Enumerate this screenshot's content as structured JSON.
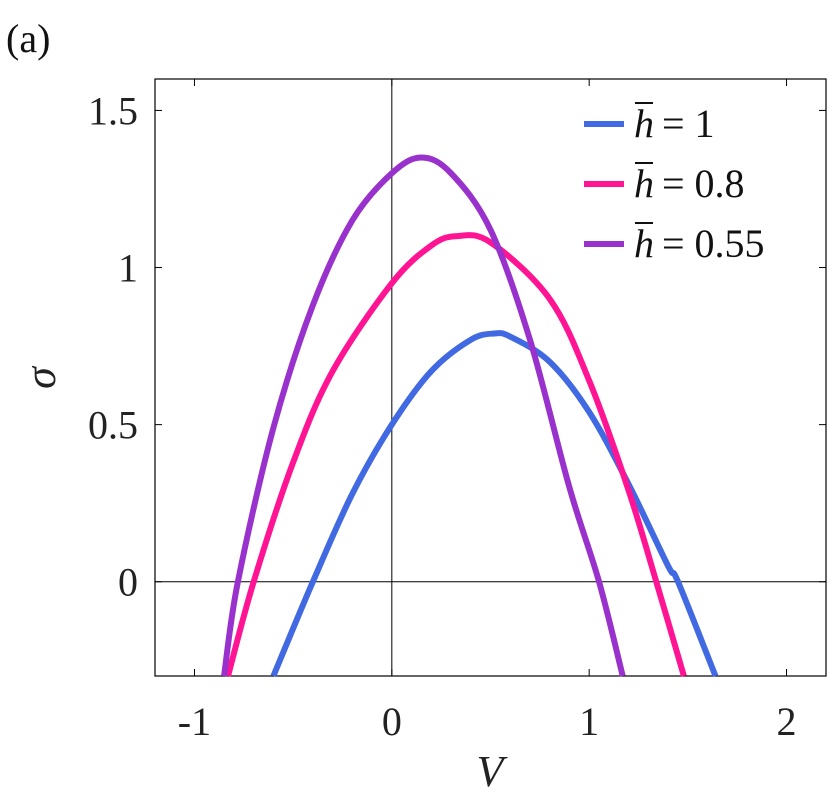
{
  "panel_label": "(a)",
  "chart_data": {
    "type": "line",
    "xlabel": "V",
    "ylabel": "σ",
    "xlim": [
      -1.2,
      2.2
    ],
    "ylim": [
      -0.3,
      1.6
    ],
    "xticks": [
      -1,
      0,
      1,
      2
    ],
    "xtick_labels": [
      "-1",
      "0",
      "1",
      "2"
    ],
    "yticks": [
      0,
      0.5,
      1,
      1.5
    ],
    "ytick_labels": [
      "0",
      "0.5",
      "1",
      "1.5"
    ],
    "reference_lines": {
      "x": 0,
      "y": 0
    },
    "legend_position": "top-right",
    "series": [
      {
        "name": "h̄ = 1",
        "legend_var": "h",
        "legend_eq": "= 1",
        "color": "#4169e1",
        "x": [
          -0.6,
          -0.4,
          -0.2,
          0.0,
          0.2,
          0.4,
          0.52,
          0.6,
          0.8,
          1.0,
          1.2,
          1.4,
          1.45,
          1.64
        ],
        "y": [
          -0.3,
          0.0,
          0.28,
          0.5,
          0.67,
          0.77,
          0.79,
          0.78,
          0.7,
          0.54,
          0.31,
          0.05,
          0.0,
          -0.3
        ]
      },
      {
        "name": "h̄ = 0.8",
        "legend_var": "h",
        "legend_eq": "= 0.8",
        "color": "#ff1493",
        "x": [
          -0.83,
          -0.7,
          -0.5,
          -0.3,
          0.0,
          0.2,
          0.33,
          0.5,
          0.8,
          1.0,
          1.2,
          1.34,
          1.48
        ],
        "y": [
          -0.3,
          0.0,
          0.38,
          0.67,
          0.95,
          1.07,
          1.1,
          1.08,
          0.9,
          0.64,
          0.29,
          0.0,
          -0.3
        ]
      },
      {
        "name": "h̄ = 0.55",
        "legend_var": "h",
        "legend_eq": "= 0.55",
        "color": "#9932cc",
        "x": [
          -0.85,
          -0.78,
          -0.6,
          -0.4,
          -0.2,
          0.0,
          0.15,
          0.3,
          0.5,
          0.7,
          0.9,
          1.05,
          1.17
        ],
        "y": [
          -0.3,
          0.0,
          0.49,
          0.88,
          1.15,
          1.3,
          1.35,
          1.3,
          1.12,
          0.77,
          0.3,
          0.0,
          -0.3
        ]
      }
    ]
  }
}
